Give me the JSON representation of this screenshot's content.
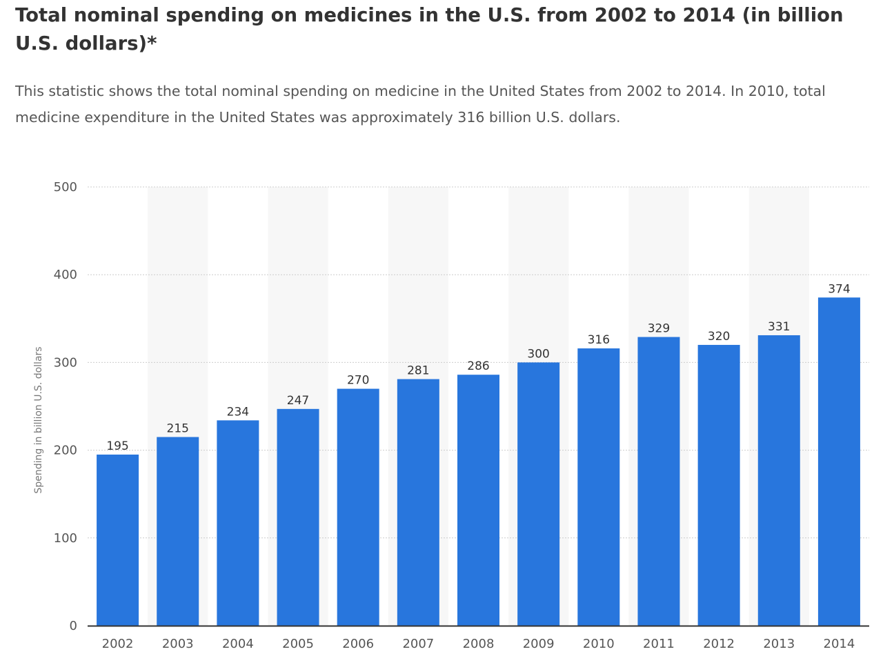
{
  "header": {
    "title": "Total nominal spending on medicines in the U.S. from 2002 to 2014 (in billion U.S. dollars)*",
    "description": "This statistic shows the total nominal spending on medicine in the United States from 2002 to 2014. In 2010, total medicine expenditure in the United States was approximately 316 billion U.S. dollars."
  },
  "chart_data": {
    "type": "bar",
    "title": "Total nominal spending on medicines in the U.S. from 2002 to 2014 (in billion U.S. dollars)*",
    "xlabel": "",
    "ylabel": "Spending in billion U.S. dollars",
    "categories": [
      "2002",
      "2003",
      "2004",
      "2005",
      "2006",
      "2007",
      "2008",
      "2009",
      "2010",
      "2011",
      "2012",
      "2013",
      "2014"
    ],
    "values": [
      195,
      215,
      234,
      247,
      270,
      281,
      286,
      300,
      316,
      329,
      320,
      331,
      374
    ],
    "ylim": [
      0,
      500
    ],
    "yticks": [
      0,
      100,
      200,
      300,
      400,
      500
    ],
    "grid": true,
    "legend": "none",
    "colors": {
      "bar": "#2876DD",
      "band": "#F7F7F7",
      "grid": "#CCCCCC",
      "axis": "#333333"
    }
  }
}
